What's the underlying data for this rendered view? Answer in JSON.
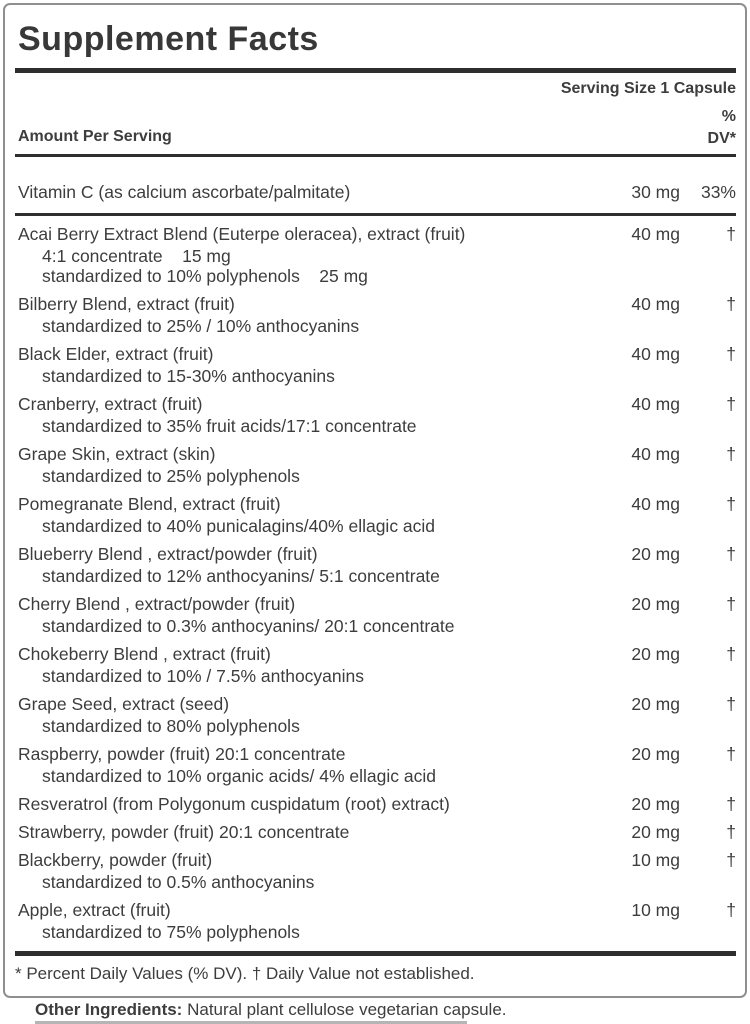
{
  "label": {
    "title": "Supplement Facts",
    "serving_size": "Serving Size 1 Capsule",
    "columns": {
      "amount_header": "Amount Per Serving",
      "dv_line1": "%",
      "dv_line2": "DV*"
    },
    "rows": [
      {
        "name": "Vitamin C (as calcium ascorbate/palmitate)",
        "amount": "30 mg",
        "dv": "33%",
        "subs": [],
        "divider_after": true
      },
      {
        "name": "Acai Berry Extract Blend (Euterpe oleracea), extract (fruit)",
        "amount": "40 mg",
        "dv": "†",
        "subs": [
          "4:1 concentrate    15 mg",
          "standardized to 10% polyphenols    25 mg"
        ]
      },
      {
        "name": "Bilberry Blend, extract (fruit)",
        "amount": "40 mg",
        "dv": "†",
        "subs": [
          "standardized to 25% / 10% anthocyanins"
        ]
      },
      {
        "name": "Black Elder, extract (fruit)",
        "amount": "40 mg",
        "dv": "†",
        "subs": [
          "standardized to 15-30% anthocyanins"
        ]
      },
      {
        "name": "Cranberry, extract (fruit)",
        "amount": "40 mg",
        "dv": "†",
        "subs": [
          "standardized to 35% fruit acids/17:1 concentrate"
        ]
      },
      {
        "name": "Grape Skin, extract (skin)",
        "amount": "40 mg",
        "dv": "†",
        "subs": [
          "standardized to 25% polyphenols"
        ]
      },
      {
        "name": "Pomegranate Blend, extract (fruit)",
        "amount": "40 mg",
        "dv": "†",
        "subs": [
          "standardized to 40% punicalagins/40% ellagic acid"
        ]
      },
      {
        "name": "Blueberry Blend , extract/powder (fruit)",
        "amount": "20 mg",
        "dv": "†",
        "subs": [
          "standardized to 12% anthocyanins/ 5:1 concentrate"
        ]
      },
      {
        "name": "Cherry Blend , extract/powder (fruit)",
        "amount": "20 mg",
        "dv": "†",
        "subs": [
          "standardized to 0.3% anthocyanins/ 20:1 concentrate"
        ]
      },
      {
        "name": "Chokeberry Blend , extract (fruit)",
        "amount": "20 mg",
        "dv": "†",
        "subs": [
          "standardized to 10% / 7.5% anthocyanins"
        ]
      },
      {
        "name": "Grape Seed, extract (seed)",
        "amount": "20 mg",
        "dv": "†",
        "subs": [
          "standardized to 80% polyphenols"
        ]
      },
      {
        "name": "Raspberry, powder (fruit) 20:1 concentrate",
        "amount": "20 mg",
        "dv": "†",
        "subs": [
          "standardized to 10% organic acids/ 4% ellagic acid"
        ]
      },
      {
        "name": "Resveratrol (from Polygonum cuspidatum (root) extract)",
        "amount": "20 mg",
        "dv": "†",
        "subs": []
      },
      {
        "name": "Strawberry, powder (fruit) 20:1 concentrate",
        "amount": "20 mg",
        "dv": "†",
        "subs": []
      },
      {
        "name": "Blackberry, powder (fruit)",
        "amount": "10 mg",
        "dv": "†",
        "subs": [
          "standardized to 0.5% anthocyanins"
        ]
      },
      {
        "name": "Apple, extract (fruit)",
        "amount": "10 mg",
        "dv": "†",
        "subs": [
          "standardized to 75% polyphenols"
        ]
      }
    ],
    "footnote": "* Percent Daily Values (% DV). † Daily Value not established.",
    "other_ingredients_label": "Other Ingredients:",
    "other_ingredients_text": " Natural plant cellulose vegetarian capsule."
  },
  "colors": {
    "text": "#3d3d3d",
    "rule": "#2e2e2e",
    "border": "#8f8f8f"
  }
}
